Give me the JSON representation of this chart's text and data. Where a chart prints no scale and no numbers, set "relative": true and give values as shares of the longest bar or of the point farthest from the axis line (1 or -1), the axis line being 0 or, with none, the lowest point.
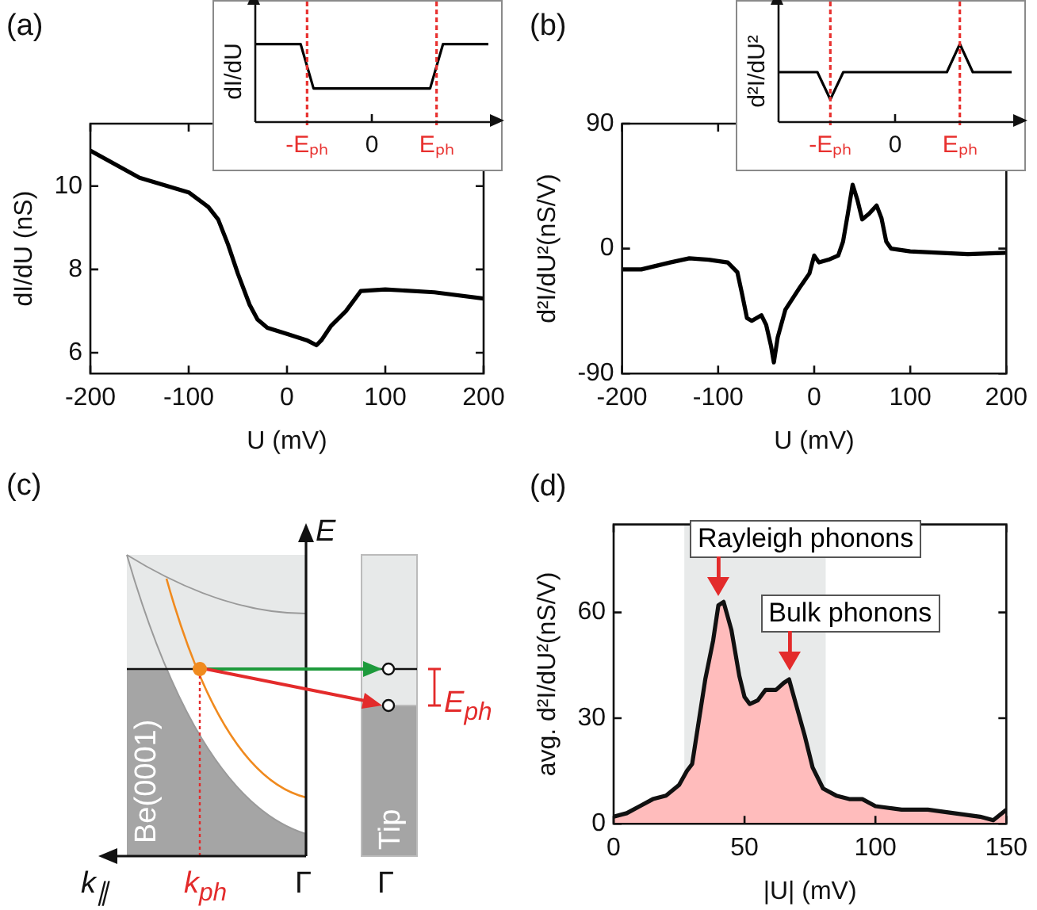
{
  "chart_data": [
    {
      "type": "line",
      "annotations": [
        "(a)"
      ],
      "xlabel": "U (mV)",
      "ylabel": "dI/dU (nS)",
      "xlim": [
        -200,
        200
      ],
      "xticks": [
        -200,
        -100,
        0,
        100,
        200
      ],
      "ylim": [
        5.5,
        11.5
      ],
      "yticks": [
        6,
        8,
        10
      ],
      "series": [
        {
          "color": "#000000",
          "x": [
            -200,
            -150,
            -100,
            -80,
            -70,
            -60,
            -50,
            -38,
            -30,
            -20,
            0,
            20,
            30,
            35,
            45,
            60,
            75,
            100,
            150,
            200
          ],
          "values": [
            10.85,
            10.2,
            9.85,
            9.5,
            9.2,
            8.6,
            7.9,
            7.15,
            6.8,
            6.6,
            6.45,
            6.3,
            6.18,
            6.3,
            6.65,
            7.0,
            7.48,
            7.52,
            7.45,
            7.3
          ]
        }
      ]
    },
    {
      "type": "line",
      "relative": true,
      "ylabel": "dI/dU",
      "tick_labels": "x",
      "categories": [
        null,
        null,
        null,
        null,
        null,
        null,
        null,
        null,
        "-Eₚₕ",
        null,
        null,
        null,
        null,
        null,
        null,
        null,
        null,
        null,
        "0",
        null,
        null,
        null,
        null,
        null,
        null,
        null,
        null,
        null,
        "Eₚₕ",
        null,
        null,
        null,
        null,
        null,
        null,
        null,
        null
      ],
      "ref_lines": [
        {
          "axis": "x",
          "value": "-Eₚₕ",
          "color": "#e8312f",
          "line_style": "dotted"
        },
        {
          "axis": "x",
          "value": "Eₚₕ",
          "color": "#e8312f",
          "line_style": "dotted"
        }
      ],
      "series": [
        {
          "color": "#000000",
          "values": [
            1,
            null,
            null,
            null,
            null,
            null,
            null,
            1,
            null,
            0.43,
            null,
            null,
            null,
            null,
            null,
            null,
            null,
            null,
            null,
            null,
            null,
            null,
            null,
            null,
            null,
            null,
            null,
            0.43,
            null,
            1,
            null,
            null,
            null,
            null,
            null,
            null,
            1
          ]
        }
      ]
    },
    {
      "type": "line",
      "annotations": [
        "(b)"
      ],
      "xlabel": "U (mV)",
      "ylabel": "d²I/dU²(nS/V)",
      "xlim": [
        -200,
        200
      ],
      "xticks": [
        -200,
        -100,
        0,
        100,
        200
      ],
      "ylim": [
        -90,
        90
      ],
      "yticks": [
        -90,
        0,
        90
      ],
      "series": [
        {
          "color": "#000000",
          "x": [
            -200,
            -180,
            -150,
            -130,
            -110,
            -90,
            -80,
            -75,
            -70,
            -65,
            -55,
            -50,
            -45,
            -42,
            -38,
            -30,
            -15,
            -5,
            0,
            5,
            15,
            25,
            30,
            35,
            40,
            45,
            50,
            57,
            65,
            70,
            75,
            80,
            100,
            130,
            160,
            200
          ],
          "values": [
            -15,
            -15,
            -10,
            -7,
            -8,
            -10,
            -17,
            -33,
            -50,
            -52,
            -48,
            -55,
            -70,
            -82,
            -64,
            -44,
            -28,
            -18,
            -5,
            -10,
            -8,
            -5,
            5,
            25,
            46,
            35,
            21,
            25,
            31,
            22,
            5,
            0,
            -2,
            -3,
            -4,
            -3
          ]
        }
      ]
    },
    {
      "type": "line",
      "relative": true,
      "ylabel": "d²I/dU²",
      "tick_labels": "x",
      "categories": [
        null,
        null,
        null,
        null,
        null,
        null,
        null,
        null,
        "-Eₚₕ",
        null,
        null,
        null,
        null,
        null,
        null,
        null,
        null,
        null,
        "0",
        null,
        null,
        null,
        null,
        null,
        null,
        null,
        null,
        null,
        "Eₚₕ",
        null,
        null,
        null,
        null,
        null,
        null,
        null,
        null
      ],
      "ref_lines": [
        {
          "axis": "x",
          "value": "-Eₚₕ",
          "color": "#e8312f",
          "line_style": "dotted"
        },
        {
          "axis": "x",
          "value": "Eₚₕ",
          "color": "#e8312f",
          "line_style": "dotted"
        }
      ],
      "series": [
        {
          "color": "#000000",
          "values": [
            0.64,
            null,
            null,
            null,
            null,
            null,
            0.64,
            null,
            0.29,
            null,
            0.64,
            null,
            null,
            null,
            null,
            null,
            null,
            null,
            null,
            null,
            null,
            null,
            null,
            null,
            null,
            null,
            0.64,
            null,
            1,
            null,
            0.64,
            null,
            null,
            null,
            null,
            null,
            0.64
          ]
        }
      ]
    },
    {
      "type": "other",
      "title": "(c)",
      "annotations": [
        "E",
        "Be(0001)",
        "Tip",
        "E$_{ph}$",
        "k$_{∥}$",
        "k$_{ph}$",
        "Γ",
        "Γ"
      ]
    },
    {
      "type": "area",
      "title": "(d)",
      "xlabel": "|U| (mV)",
      "ylabel": "avg. d²I/dU²(nS/V)",
      "xlim": [
        0,
        150
      ],
      "xticks": [
        0,
        50,
        100,
        150
      ],
      "ylim": [
        0,
        85
      ],
      "yticks": [
        0,
        30,
        60
      ],
      "bands": [
        {
          "axis": "x",
          "from": 27,
          "to": 81,
          "color": "#e8eaea"
        }
      ],
      "annotations": [
        {
          "text": "Rayleigh phonons",
          "x": 40,
          "y": 62
        },
        {
          "text": "Bulk phonons",
          "x": 67,
          "y": 41
        }
      ],
      "series": [
        {
          "color": "#ffbcbc",
          "x": [
            0,
            5,
            10,
            15,
            20,
            25,
            28,
            30,
            35,
            38,
            40,
            42,
            45,
            48,
            50,
            52,
            55,
            58,
            62,
            65,
            67,
            70,
            73,
            76,
            80,
            85,
            90,
            95,
            100,
            110,
            120,
            130,
            140,
            145,
            150
          ],
          "values": [
            2,
            3,
            5,
            7,
            8,
            11,
            15,
            17,
            41,
            52,
            62,
            63,
            55,
            42,
            36,
            34,
            35,
            38,
            38,
            40,
            41,
            33,
            25,
            16,
            10,
            8,
            7,
            7,
            5,
            4,
            4,
            3,
            2,
            1,
            4
          ]
        }
      ]
    }
  ]
}
